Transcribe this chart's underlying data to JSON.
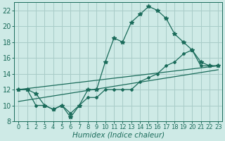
{
  "bg_color": "#ceeae6",
  "grid_color": "#a8ccc8",
  "line_color": "#1a6b5a",
  "xlabel": "Humidex (Indice chaleur)",
  "xlabel_fontsize": 7.5,
  "ytick_fontsize": 7,
  "xtick_fontsize": 6,
  "ylim": [
    8,
    23
  ],
  "xlim": [
    -0.5,
    23.5
  ],
  "yticks": [
    8,
    10,
    12,
    14,
    16,
    18,
    20,
    22
  ],
  "xticks": [
    0,
    1,
    2,
    3,
    4,
    5,
    6,
    7,
    8,
    9,
    10,
    11,
    12,
    13,
    14,
    15,
    16,
    17,
    18,
    19,
    20,
    21,
    22,
    23
  ],
  "line1_x": [
    0,
    1,
    2,
    3,
    4,
    5,
    6,
    7,
    8,
    9,
    10,
    11,
    12,
    13,
    14,
    15,
    16,
    17,
    18,
    19,
    20,
    21,
    22,
    23
  ],
  "line1_y": [
    12,
    12,
    11.5,
    10,
    9.5,
    10,
    8.5,
    10,
    12,
    12,
    15.5,
    18.5,
    18,
    20.5,
    21.5,
    22.5,
    22,
    21,
    19,
    18,
    17,
    15.5,
    15,
    15
  ],
  "line2_x": [
    0,
    1,
    2,
    3,
    4,
    5,
    6,
    7,
    8,
    9,
    10,
    11,
    12,
    13,
    14,
    15,
    16,
    17,
    18,
    19,
    20,
    21,
    22,
    23
  ],
  "line2_y": [
    12,
    12,
    10,
    10,
    9.5,
    10,
    9,
    10,
    11,
    11,
    12,
    12,
    12,
    12,
    13,
    13.5,
    14,
    15,
    15.5,
    16.5,
    17,
    15,
    15,
    15
  ],
  "line3_x": [
    0,
    23
  ],
  "line3_y": [
    12,
    15
  ],
  "line4_x": [
    0,
    23
  ],
  "line4_y": [
    10.5,
    14.5
  ]
}
